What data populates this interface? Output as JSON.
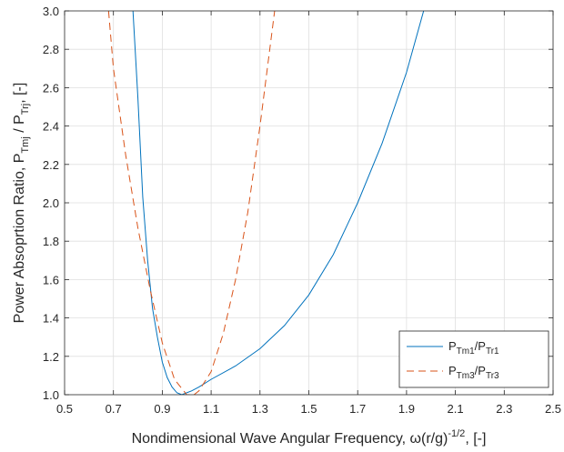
{
  "chart_data": {
    "type": "line",
    "xlabel": {
      "main": "Nondimensional Wave Angular Frequency, ω(r/g)",
      "sup": "-1/2",
      "tail": ", [-]"
    },
    "ylabel": {
      "main": "Power Absoprtion Ratio, P",
      "sub1": "Tmj",
      "mid": " / P",
      "sub2": "Trj",
      "tail": ", [-]"
    },
    "xlim": [
      0.5,
      2.5
    ],
    "ylim": [
      1.0,
      3.0
    ],
    "xticks": [
      0.5,
      0.7,
      0.9,
      1.1,
      1.3,
      1.5,
      1.7,
      1.9,
      2.1,
      2.3,
      2.5
    ],
    "yticks": [
      1.0,
      1.2,
      1.4,
      1.6,
      1.8,
      2.0,
      2.2,
      2.4,
      2.6,
      2.8,
      3.0
    ],
    "xtick_labels": [
      "0.5",
      "0.7",
      "0.9",
      "1.1",
      "1.3",
      "1.5",
      "1.7",
      "1.9",
      "2.1",
      "2.3",
      "2.5"
    ],
    "ytick_labels": [
      "1.0",
      "1.2",
      "1.4",
      "1.6",
      "1.8",
      "2.0",
      "2.2",
      "2.4",
      "2.6",
      "2.8",
      "3.0"
    ],
    "grid": true,
    "legend_position": "bottom-right",
    "series": [
      {
        "name": {
          "p1": "P",
          "s1": "Tm1",
          "p2": "/P",
          "s2": "Tr1"
        },
        "color": "#0072BD",
        "dash": "solid",
        "x": [
          0.78,
          0.8,
          0.82,
          0.84,
          0.86,
          0.88,
          0.9,
          0.92,
          0.94,
          0.96,
          0.98,
          1.0,
          1.02,
          1.05,
          1.1,
          1.2,
          1.3,
          1.4,
          1.5,
          1.6,
          1.7,
          1.8,
          1.9,
          1.97
        ],
        "y": [
          3.0,
          2.55,
          2.03,
          1.7,
          1.45,
          1.3,
          1.17,
          1.09,
          1.04,
          1.01,
          1.0,
          1.01,
          1.02,
          1.04,
          1.08,
          1.15,
          1.24,
          1.36,
          1.52,
          1.73,
          2.0,
          2.31,
          2.68,
          3.0
        ]
      },
      {
        "name": {
          "p1": "P",
          "s1": "Tm3",
          "p2": "/P",
          "s2": "Tr3"
        },
        "color": "#D95319",
        "dash": "dashed",
        "x": [
          0.68,
          0.7,
          0.75,
          0.8,
          0.85,
          0.9,
          0.95,
          1.0,
          1.03,
          1.05,
          1.1,
          1.15,
          1.2,
          1.25,
          1.3,
          1.33,
          1.36
        ],
        "y": [
          3.0,
          2.7,
          2.25,
          1.87,
          1.55,
          1.27,
          1.08,
          1.0,
          1.0,
          1.02,
          1.12,
          1.32,
          1.6,
          1.95,
          2.4,
          2.7,
          3.0
        ]
      }
    ]
  }
}
